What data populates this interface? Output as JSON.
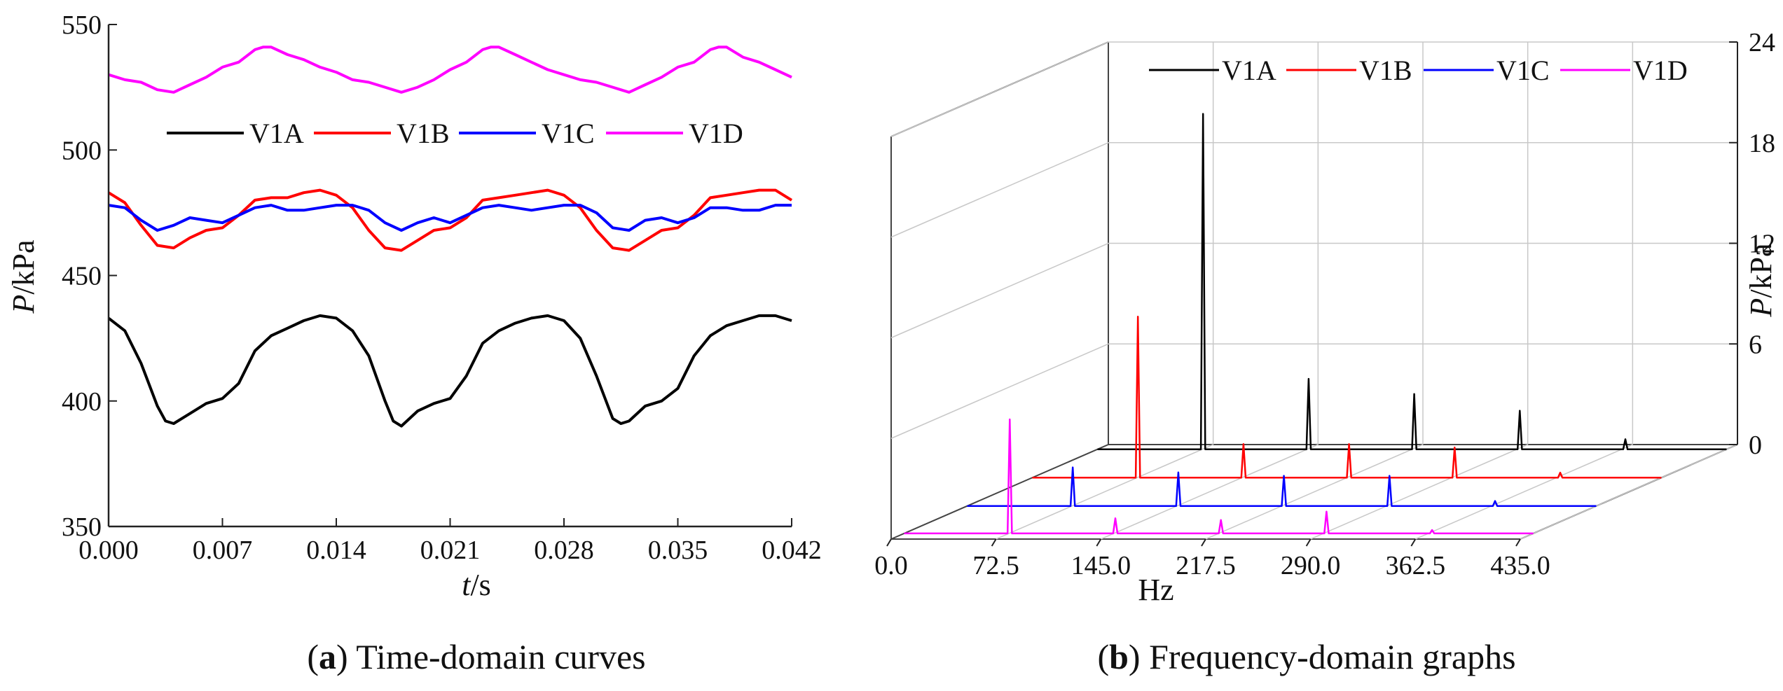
{
  "colors": {
    "V1A": "#000000",
    "V1B": "#ff0000",
    "V1C": "#0000ff",
    "V1D": "#ff00ff",
    "grid": "#c8c8c8",
    "axis": "#222222"
  },
  "chart_data": [
    {
      "id": "a",
      "type": "line",
      "caption": {
        "letter": "a",
        "text": "Time-domain curves"
      },
      "title": "",
      "xlabel": {
        "var": "t",
        "unit": "/s"
      },
      "ylabel": {
        "var": "P",
        "unit": "/kPa"
      },
      "xlim": [
        0,
        0.042
      ],
      "ylim": [
        350,
        550
      ],
      "xticks": [
        "0.000",
        "0.007",
        "0.014",
        "0.021",
        "0.028",
        "0.035",
        "0.042"
      ],
      "yticks": [
        "350",
        "400",
        "450",
        "500",
        "550"
      ],
      "legend": [
        "V1A",
        "V1B",
        "V1C",
        "V1D"
      ],
      "series": [
        {
          "name": "V1A",
          "x": [
            0,
            0.001,
            0.002,
            0.003,
            0.0035,
            0.004,
            0.005,
            0.006,
            0.007,
            0.008,
            0.009,
            0.01,
            0.011,
            0.012,
            0.013,
            0.014,
            0.015,
            0.016,
            0.017,
            0.0175,
            0.018,
            0.019,
            0.02,
            0.021,
            0.022,
            0.023,
            0.024,
            0.025,
            0.026,
            0.027,
            0.028,
            0.029,
            0.03,
            0.031,
            0.0315,
            0.032,
            0.033,
            0.034,
            0.035,
            0.036,
            0.037,
            0.038,
            0.039,
            0.04,
            0.041,
            0.042
          ],
          "values": [
            433,
            428,
            415,
            398,
            392,
            391,
            395,
            399,
            401,
            407,
            420,
            426,
            429,
            432,
            434,
            433,
            428,
            418,
            400,
            392,
            390,
            396,
            399,
            401,
            410,
            423,
            428,
            431,
            433,
            434,
            432,
            425,
            410,
            393,
            391,
            392,
            398,
            400,
            405,
            418,
            426,
            430,
            432,
            434,
            434,
            432
          ]
        },
        {
          "name": "V1B",
          "x": [
            0,
            0.001,
            0.002,
            0.003,
            0.004,
            0.005,
            0.006,
            0.007,
            0.008,
            0.009,
            0.01,
            0.011,
            0.012,
            0.013,
            0.014,
            0.015,
            0.016,
            0.017,
            0.018,
            0.019,
            0.02,
            0.021,
            0.022,
            0.023,
            0.024,
            0.025,
            0.026,
            0.027,
            0.028,
            0.029,
            0.03,
            0.031,
            0.032,
            0.033,
            0.034,
            0.035,
            0.036,
            0.037,
            0.038,
            0.039,
            0.04,
            0.041,
            0.042
          ],
          "values": [
            483,
            479,
            470,
            462,
            461,
            465,
            468,
            469,
            474,
            480,
            481,
            481,
            483,
            484,
            482,
            477,
            468,
            461,
            460,
            464,
            468,
            469,
            473,
            480,
            481,
            482,
            483,
            484,
            482,
            477,
            468,
            461,
            460,
            464,
            468,
            469,
            474,
            481,
            482,
            483,
            484,
            484,
            480
          ]
        },
        {
          "name": "V1C",
          "x": [
            0,
            0.001,
            0.002,
            0.003,
            0.004,
            0.005,
            0.006,
            0.007,
            0.008,
            0.009,
            0.01,
            0.011,
            0.012,
            0.013,
            0.014,
            0.015,
            0.016,
            0.017,
            0.018,
            0.019,
            0.02,
            0.021,
            0.022,
            0.023,
            0.024,
            0.025,
            0.026,
            0.027,
            0.028,
            0.029,
            0.03,
            0.031,
            0.032,
            0.033,
            0.034,
            0.035,
            0.036,
            0.037,
            0.038,
            0.039,
            0.04,
            0.041,
            0.042
          ],
          "values": [
            478,
            477,
            472,
            468,
            470,
            473,
            472,
            471,
            474,
            477,
            478,
            476,
            476,
            477,
            478,
            478,
            476,
            471,
            468,
            471,
            473,
            471,
            474,
            477,
            478,
            477,
            476,
            477,
            478,
            478,
            475,
            469,
            468,
            472,
            473,
            471,
            473,
            477,
            477,
            476,
            476,
            478,
            478
          ]
        },
        {
          "name": "V1D",
          "x": [
            0,
            0.001,
            0.002,
            0.003,
            0.004,
            0.005,
            0.006,
            0.007,
            0.008,
            0.009,
            0.0095,
            0.01,
            0.011,
            0.012,
            0.013,
            0.014,
            0.015,
            0.016,
            0.017,
            0.018,
            0.019,
            0.02,
            0.021,
            0.022,
            0.023,
            0.0235,
            0.024,
            0.025,
            0.026,
            0.027,
            0.028,
            0.029,
            0.03,
            0.031,
            0.032,
            0.033,
            0.034,
            0.035,
            0.036,
            0.037,
            0.0375,
            0.038,
            0.039,
            0.04,
            0.041,
            0.042
          ],
          "values": [
            530,
            528,
            527,
            524,
            523,
            526,
            529,
            533,
            535,
            540,
            541,
            541,
            538,
            536,
            533,
            531,
            528,
            527,
            525,
            523,
            525,
            528,
            532,
            535,
            540,
            541,
            541,
            538,
            535,
            532,
            530,
            528,
            527,
            525,
            523,
            526,
            529,
            533,
            535,
            540,
            541,
            541,
            537,
            535,
            532,
            529
          ]
        }
      ]
    },
    {
      "id": "b",
      "type": "line",
      "subtype": "3d-waterfall",
      "caption": {
        "letter": "b",
        "text": "Frequency-domain graphs"
      },
      "title": "",
      "xlabel": "Hz",
      "zlabel": {
        "var": "P",
        "unit": "/kPa"
      },
      "xlim": [
        0,
        435
      ],
      "zlim": [
        0,
        24
      ],
      "xticks": [
        "0.0",
        "72.5",
        "145.0",
        "217.5",
        "290.0",
        "362.5",
        "435.0"
      ],
      "zticks": [
        "0",
        "6",
        "12",
        "18",
        "24"
      ],
      "legend": [
        "V1A",
        "V1B",
        "V1C",
        "V1D"
      ],
      "series": [
        {
          "name": "V1A",
          "peaks": [
            {
              "f": 73,
              "p": 20
            },
            {
              "f": 146,
              "p": 4.2
            },
            {
              "f": 219,
              "p": 3.3
            },
            {
              "f": 292,
              "p": 2.3
            },
            {
              "f": 365,
              "p": 0.6
            }
          ]
        },
        {
          "name": "V1B",
          "peaks": [
            {
              "f": 73,
              "p": 9.6
            },
            {
              "f": 146,
              "p": 2.0
            },
            {
              "f": 219,
              "p": 2.0
            },
            {
              "f": 292,
              "p": 1.8
            },
            {
              "f": 365,
              "p": 0.3
            }
          ]
        },
        {
          "name": "V1C",
          "peaks": [
            {
              "f": 73,
              "p": 2.3
            },
            {
              "f": 146,
              "p": 2.0
            },
            {
              "f": 219,
              "p": 1.8
            },
            {
              "f": 292,
              "p": 1.8
            },
            {
              "f": 365,
              "p": 0.3
            }
          ]
        },
        {
          "name": "V1D",
          "peaks": [
            {
              "f": 73,
              "p": 6.8
            },
            {
              "f": 146,
              "p": 0.9
            },
            {
              "f": 219,
              "p": 0.8
            },
            {
              "f": 292,
              "p": 1.3
            },
            {
              "f": 365,
              "p": 0.2
            }
          ]
        }
      ]
    }
  ]
}
